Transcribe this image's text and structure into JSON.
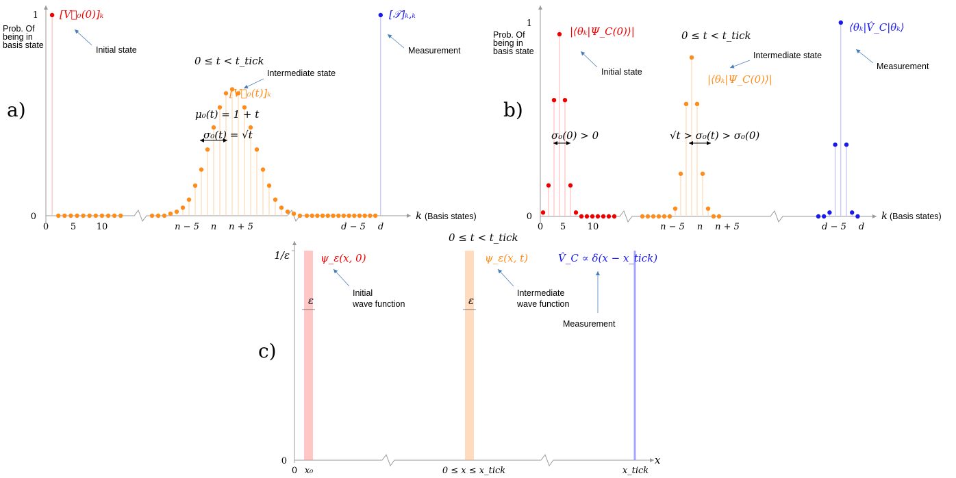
{
  "colors": {
    "red": "#ee0000",
    "orange": "#ff8c1a",
    "blue": "#1a1aee",
    "axis": "#999999",
    "text": "#111111"
  },
  "panel_a": {
    "tag": "a)",
    "ylabel_lines": [
      "Prob. Of",
      "being in",
      "basis state"
    ],
    "y_one": "1",
    "y_zero": "0",
    "x_axis_label": "(Basis states)",
    "x_var": "k",
    "xticks": [
      "0",
      "5",
      "10",
      "n − 5",
      "n",
      "n + 5",
      "d − 5",
      "d"
    ],
    "initial_math": "[V⃗₀(0)]ₖ",
    "initial_label": "Initial state",
    "measure_math": "[𝒯]ₖ,ₖ",
    "measure_label": "Measurement",
    "time_range": "0 ≤ t < t_tick",
    "intermediate_label": "Intermediate state",
    "intermediate_math": "[V⃗₀(t)]ₖ",
    "mu": "μ₀(t) = 1 + t",
    "sigma": "σ₀(t) = √t"
  },
  "panel_b": {
    "tag": "b)",
    "ylabel_lines": [
      "Prob. Of",
      "being in",
      "basis state"
    ],
    "y_one": "1",
    "y_zero": "0",
    "x_axis_label": "(Basis states)",
    "x_var": "k",
    "xticks": [
      "0",
      "5",
      "10",
      "n − 5",
      "n",
      "n + 5",
      "d − 5",
      "d"
    ],
    "initial_math": "|⟨θₖ|Ψ_C(0)⟩|",
    "initial_label": "Initial state",
    "time_range": "0 ≤ t < t_tick",
    "intermediate_label": "Intermediate state",
    "intermediate_math": "|⟨θₖ|Ψ_C(0)⟩|",
    "measure_math": "⟨θₖ|V̂_C|θₖ⟩",
    "measure_label": "Measurement",
    "sigma0": "σ₀(0) > 0",
    "sigma_t": "√t > σ₀(t) > σ₀(0)"
  },
  "panel_c": {
    "tag": "c)",
    "y_top": "1/ε",
    "y_zero": "0",
    "x_var": "x",
    "xticks": [
      "0",
      "x₀",
      "0 ≤ x ≤ x_tick",
      "x_tick"
    ],
    "time_range": "0 ≤ t < t_tick",
    "initial_math": "ψ_ε(x, 0)",
    "initial_label_lines": [
      "Initial",
      "wave function"
    ],
    "intermediate_math": "ψ_ε(x, t)",
    "intermediate_label_lines": [
      "Intermediate",
      "wave function"
    ],
    "measure_math": "V̂_C ∝ δ(x − x_tick)",
    "measure_label": "Measurement",
    "epsilon": "ε"
  },
  "chart_data": [
    {
      "type": "scatter",
      "panel": "a",
      "series": [
        {
          "name": "",
          "x": [
            1
          ],
          "y": [
            1.0
          ]
        },
        {
          "name": "",
          "x": [
            21,
            22,
            23,
            24,
            25,
            26,
            27,
            28,
            29,
            30,
            31,
            32,
            33,
            34,
            35,
            36,
            37,
            38,
            39,
            40,
            41,
            42,
            43,
            44,
            45
          ],
          "y": [
            0.0,
            0.0,
            0.0,
            0.01,
            0.02,
            0.04,
            0.08,
            0.15,
            0.23,
            0.33,
            0.44,
            0.54,
            0.61,
            0.63,
            0.61,
            0.54,
            0.44,
            0.33,
            0.23,
            0.15,
            0.08,
            0.04,
            0.02,
            0.01,
            0.0
          ]
        },
        {
          "name": "",
          "x": [
            61
          ],
          "y": [
            1.0
          ]
        }
      ],
      "ylim": [
        0,
        1
      ]
    },
    {
      "type": "scatter",
      "panel": "b",
      "series": [
        {
          "name": "",
          "x": [
            0,
            1,
            2,
            3,
            4,
            5,
            6,
            7
          ],
          "y": [
            0.02,
            0.16,
            0.6,
            0.94,
            0.6,
            0.16,
            0.02,
            0.0
          ]
        },
        {
          "name": "",
          "x": [
            21,
            22,
            23,
            24,
            25,
            26,
            27,
            28,
            29,
            30,
            31,
            32,
            33,
            34,
            35
          ],
          "y": [
            0.0,
            0.0,
            0.0,
            0.0,
            0.0,
            0.0,
            0.04,
            0.22,
            0.58,
            0.82,
            0.58,
            0.22,
            0.04,
            0.0,
            0.0
          ]
        },
        {
          "name": "",
          "x": [
            48,
            49,
            50,
            51,
            52,
            53,
            54,
            55
          ],
          "y": [
            0.0,
            0.0,
            0.02,
            0.37,
            1.0,
            0.37,
            0.02,
            0.0
          ]
        }
      ],
      "ylim": [
        0,
        1
      ]
    }
  ]
}
